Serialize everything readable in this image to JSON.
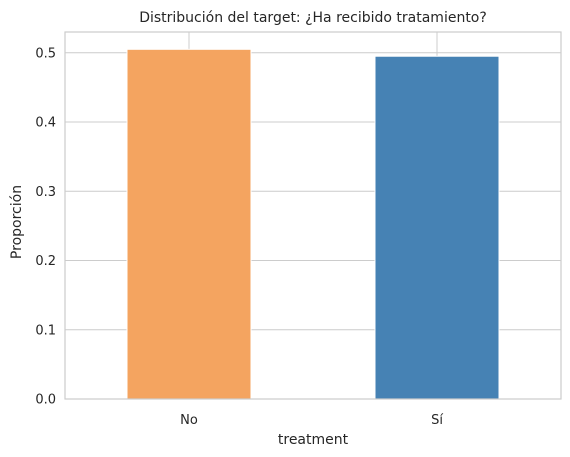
{
  "chart_data": {
    "type": "bar",
    "title": "Distribución del target: ¿Ha recibido tratamiento?",
    "xlabel": "treatment",
    "ylabel": "Proporción",
    "categories": [
      "No",
      "Sí"
    ],
    "values": [
      0.505,
      0.495
    ],
    "colors": [
      "#f4a460",
      "#4682b4"
    ],
    "ylim": [
      0,
      0.53
    ],
    "yticks": [
      0.0,
      0.1,
      0.2,
      0.3,
      0.4,
      0.5
    ],
    "ytick_labels": [
      "0.0",
      "0.1",
      "0.2",
      "0.3",
      "0.4",
      "0.5"
    ],
    "grid": true,
    "legend": "none"
  }
}
